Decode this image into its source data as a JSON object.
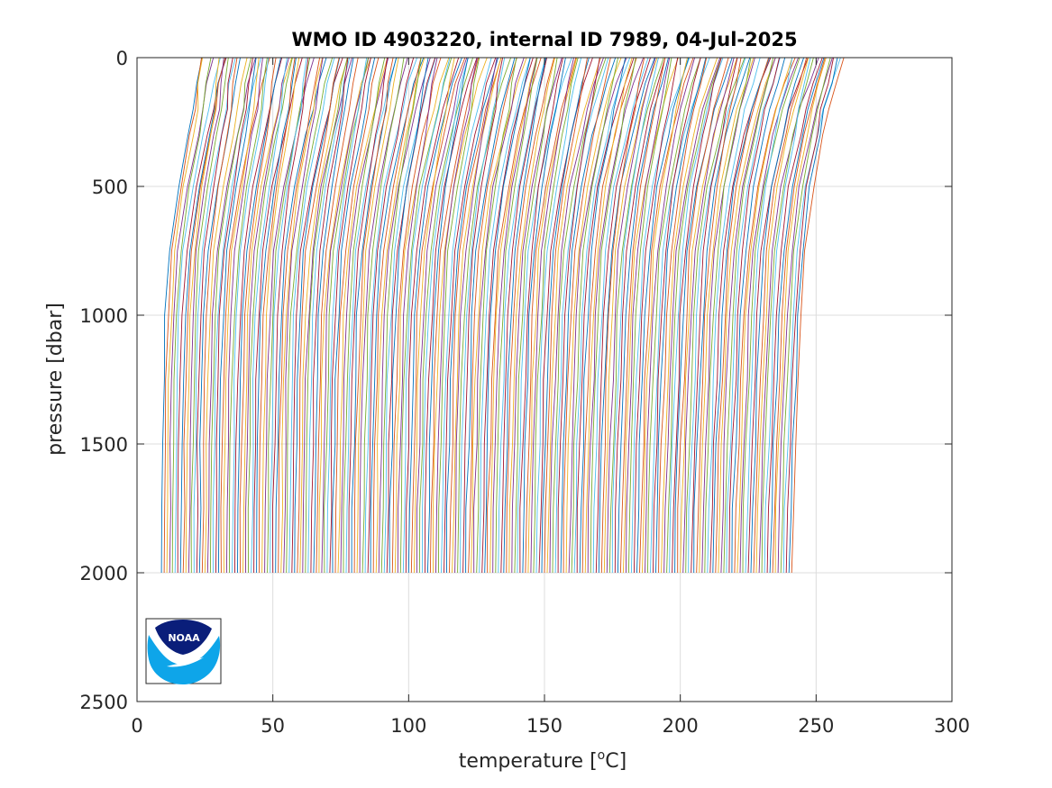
{
  "chart_data": {
    "type": "line",
    "title": "WMO ID 4903220, internal ID 7989, 04-Jul-2025",
    "xlabel": "temperature [",
    "xlabel_sup": "o",
    "xlabel_end": "C]",
    "ylabel": "pressure [dbar]",
    "xlim": [
      0,
      300
    ],
    "ylim": [
      0,
      2500
    ],
    "y_reversed": true,
    "x_ticks": [
      0,
      50,
      100,
      150,
      200,
      250,
      300
    ],
    "y_ticks": [
      0,
      500,
      1000,
      1500,
      2000,
      2500
    ],
    "x_tick_labels": [
      "0",
      "50",
      "100",
      "150",
      "200",
      "250",
      "300"
    ],
    "y_tick_labels": [
      "0",
      "500",
      "1000",
      "1500",
      "2000",
      "2500"
    ],
    "grid": true,
    "profile_offset_description": "successive profiles shifted by a constant temperature offset",
    "profile_count": 233,
    "first_profile": {
      "pressure": [
        0,
        100,
        200,
        300,
        500,
        750,
        1000,
        1250,
        1500,
        1750,
        2000
      ],
      "temperature": [
        24,
        22,
        21,
        19,
        15.5,
        12,
        10.5,
        9.8,
        9.4,
        9.2,
        9.0
      ]
    },
    "last_profile": {
      "pressure": [
        0,
        100,
        200,
        300,
        500,
        750,
        1000,
        1250,
        1500,
        1750,
        2000
      ],
      "temperature": [
        261,
        258,
        255,
        253,
        249,
        246,
        244.5,
        243.5,
        242.5,
        241.5,
        241
      ]
    },
    "colors": [
      "#0072bd",
      "#d95319",
      "#edb120",
      "#7e2f8e",
      "#77ac30",
      "#4dbeee",
      "#a2142f"
    ]
  },
  "logo": {
    "text": "NOAA",
    "top_color": "#0a1e7a",
    "bottom_color": "#0ea5e9"
  }
}
